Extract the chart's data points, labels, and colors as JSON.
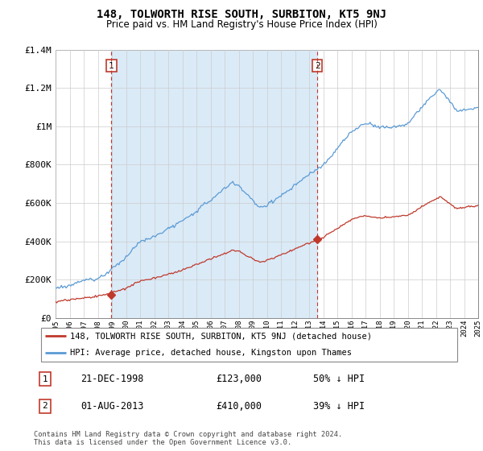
{
  "title": "148, TOLWORTH RISE SOUTH, SURBITON, KT5 9NJ",
  "subtitle": "Price paid vs. HM Land Registry's House Price Index (HPI)",
  "x_start_year": 1995,
  "x_end_year": 2025,
  "y_min": 0,
  "y_max": 1400000,
  "y_ticks": [
    0,
    200000,
    400000,
    600000,
    800000,
    1000000,
    1200000,
    1400000
  ],
  "y_tick_labels": [
    "£0",
    "£200K",
    "£400K",
    "£600K",
    "£800K",
    "£1M",
    "£1.2M",
    "£1.4M"
  ],
  "hpi_color": "#5b9bd5",
  "hpi_fill_color": "#daeaf7",
  "price_color": "#c0392b",
  "marker1_year": 1998.97,
  "marker2_year": 2013.58,
  "marker1_price": 123000,
  "marker2_price": 410000,
  "legend_label_red": "148, TOLWORTH RISE SOUTH, SURBITON, KT5 9NJ (detached house)",
  "legend_label_blue": "HPI: Average price, detached house, Kingston upon Thames",
  "transaction1_date": "21-DEC-1998",
  "transaction1_price": "£123,000",
  "transaction1_hpi": "50% ↓ HPI",
  "transaction2_date": "01-AUG-2013",
  "transaction2_price": "£410,000",
  "transaction2_hpi": "39% ↓ HPI",
  "footer": "Contains HM Land Registry data © Crown copyright and database right 2024.\nThis data is licensed under the Open Government Licence v3.0.",
  "background_color": "#ffffff",
  "grid_color": "#cccccc",
  "shade_color": "#daeaf7"
}
